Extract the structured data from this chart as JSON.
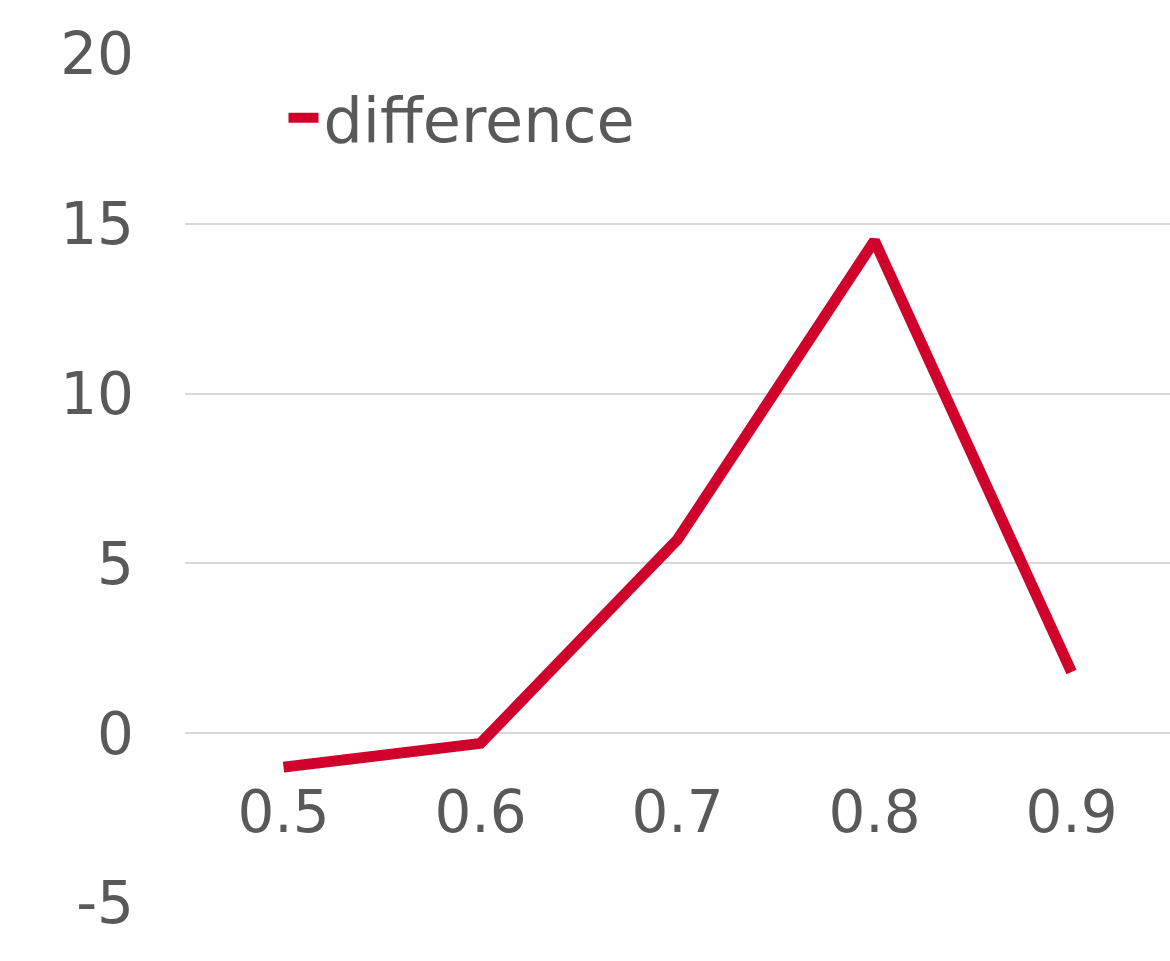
{
  "chart_data": {
    "type": "line",
    "categories": [
      "0.5",
      "0.6",
      "0.7",
      "0.8",
      "0.9"
    ],
    "series": [
      {
        "name": "difference",
        "color": "#d0022b",
        "values": [
          -1.0,
          -0.3,
          5.7,
          14.5,
          1.8
        ]
      }
    ],
    "ylim": [
      -5,
      20
    ],
    "yticks": [
      -5,
      0,
      5,
      10,
      15,
      20
    ],
    "grid": "y",
    "legend": "top left",
    "marker": "none",
    "line_style": "solid"
  }
}
